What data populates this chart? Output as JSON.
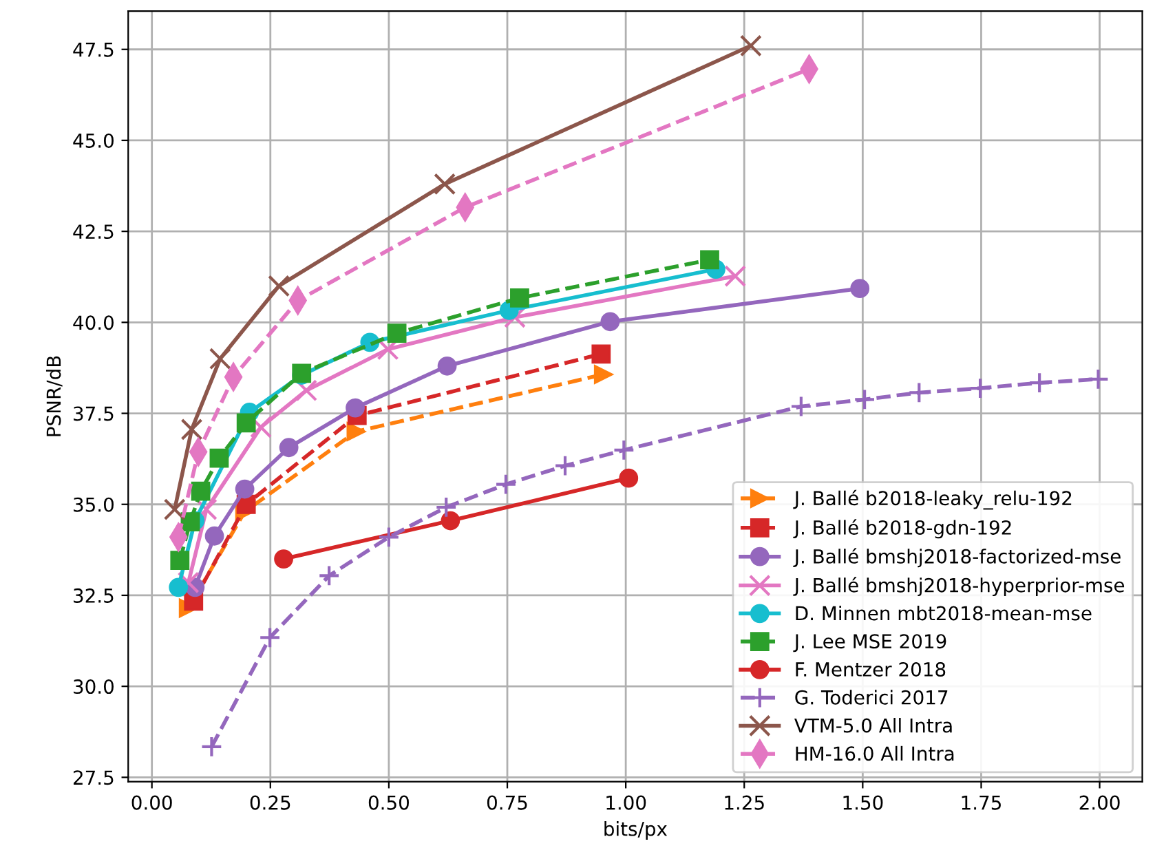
{
  "chart_data": {
    "type": "line",
    "xlabel": "bits/px",
    "ylabel": "PSNR/dB",
    "xlim": [
      -0.05,
      2.09
    ],
    "ylim": [
      27.38,
      48.55
    ],
    "xticks": [
      {
        "value": 0,
        "label": "0.00"
      },
      0.25,
      {
        "value": 0.5,
        "label": "0.50"
      },
      0.75,
      {
        "value": 1,
        "label": "1.00"
      },
      1.25,
      {
        "value": 1.5,
        "label": "1.50"
      },
      1.75,
      {
        "value": 2,
        "label": "2.00"
      }
    ],
    "yticks": [
      27.5,
      {
        "value": 30,
        "label": "30.0"
      },
      32.5,
      {
        "value": 35,
        "label": "35.0"
      },
      37.5,
      {
        "value": 40,
        "label": "40.0"
      },
      42.5,
      {
        "value": 45,
        "label": "45.0"
      },
      47.5
    ],
    "grid": true,
    "legend": "bottom right",
    "series": [
      {
        "name": "J. Ballé b2018-leaky_relu-192",
        "color": "#ff7f0e",
        "marker": "triangle",
        "line_style": "dashed",
        "x": [
          0.077,
          0.196,
          0.431,
          0.953
        ],
        "values": [
          32.15,
          34.8,
          37.0,
          38.57
        ]
      },
      {
        "name": "J. Ballé b2018-gdn-192",
        "color": "#d62728",
        "marker": "square",
        "line_style": "dashed",
        "x": [
          0.088,
          0.199,
          0.433,
          0.948
        ],
        "values": [
          32.34,
          35.0,
          37.44,
          39.13
        ]
      },
      {
        "name": "J. Ballé bmshj2018-factorized-mse",
        "color": "#9467bd",
        "marker": "circle",
        "line_style": "solid",
        "x": [
          0.091,
          0.132,
          0.196,
          0.289,
          0.429,
          0.623,
          0.967,
          1.494
        ],
        "values": [
          32.72,
          34.13,
          35.42,
          36.56,
          37.65,
          38.8,
          40.02,
          40.93
        ]
      },
      {
        "name": "J. Ballé bmshj2018-hyperprior-mse",
        "color": "#e377c2",
        "marker": "cross",
        "line_style": "solid",
        "x": [
          0.077,
          0.115,
          0.23,
          0.326,
          0.498,
          0.766,
          1.231
        ],
        "values": [
          32.85,
          34.86,
          37.12,
          38.13,
          39.26,
          40.14,
          41.27
        ]
      },
      {
        "name": "D. Minnen mbt2018-mean-mse",
        "color": "#17becf",
        "marker": "circle",
        "line_style": "solid",
        "x": [
          0.056,
          0.091,
          0.206,
          0.316,
          0.46,
          0.754,
          1.19
        ],
        "values": [
          32.72,
          34.55,
          37.53,
          38.55,
          39.45,
          40.33,
          41.46
        ]
      },
      {
        "name": "J. Lee MSE 2019",
        "color": "#2ca02c",
        "marker": "square",
        "line_style": "dashed",
        "x": [
          0.059,
          0.081,
          0.103,
          0.142,
          0.199,
          0.316,
          0.517,
          0.776,
          1.177
        ],
        "values": [
          33.46,
          34.52,
          35.36,
          36.27,
          37.24,
          38.6,
          39.7,
          40.67,
          41.72
        ]
      },
      {
        "name": "F. Mentzer 2018",
        "color": "#d62728",
        "marker": "circle",
        "line_style": "solid",
        "x": [
          0.278,
          0.63,
          1.006
        ],
        "values": [
          33.5,
          34.55,
          35.72
        ]
      },
      {
        "name": "G. Toderici 2017",
        "color": "#9467bd",
        "marker": "plus",
        "line_style": "dashed",
        "x": [
          0.126,
          0.249,
          0.374,
          0.5,
          0.621,
          0.747,
          0.872,
          0.996,
          1.37,
          1.504,
          1.619,
          1.748,
          1.873,
          1.997
        ],
        "values": [
          28.34,
          31.34,
          33.04,
          34.1,
          34.92,
          35.55,
          36.06,
          36.49,
          37.69,
          37.88,
          38.07,
          38.19,
          38.34,
          38.44
        ]
      },
      {
        "name": "VTM-5.0 All Intra",
        "color": "#8c564b",
        "marker": "x",
        "line_style": "solid",
        "x": [
          0.048,
          0.084,
          0.144,
          0.268,
          0.618,
          1.264
        ],
        "values": [
          34.86,
          37.06,
          39.0,
          41.0,
          43.8,
          47.6
        ]
      },
      {
        "name": "HM-16.0 All Intra",
        "color": "#e377c2",
        "marker": "diamond",
        "line_style": "dashed",
        "x": [
          0.056,
          0.098,
          0.172,
          0.308,
          0.661,
          1.387
        ],
        "values": [
          34.1,
          36.44,
          38.5,
          40.6,
          43.16,
          46.96
        ]
      }
    ]
  }
}
